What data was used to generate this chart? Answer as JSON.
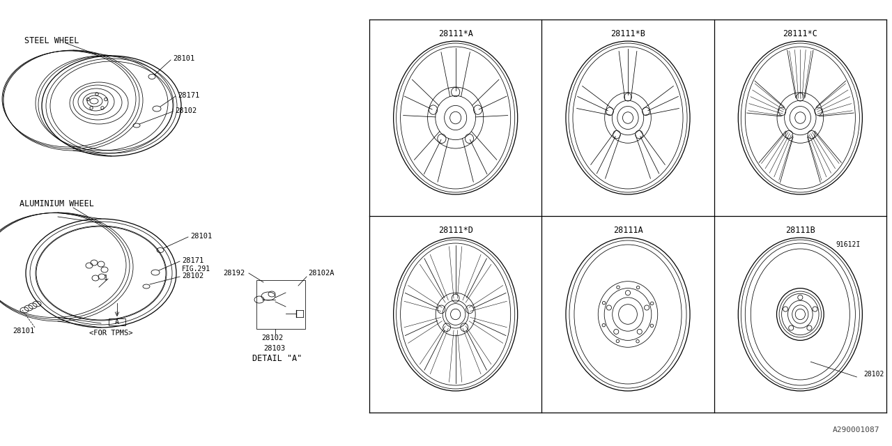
{
  "bg_color": "#ffffff",
  "line_color": "#000000",
  "part_number_ref": "A290001087",
  "steel_wheel_label": "STEEL WHEEL",
  "aluminium_wheel_label": "ALUMINIUM WHEEL",
  "detail_label": "DETAIL \"A\"",
  "for_tpms_label": "<FOR TPMS>",
  "grid_labels_top": [
    "28111*A",
    "28111*B",
    "28111*C"
  ],
  "grid_labels_bot": [
    "28111*D",
    "28111A",
    "28111B"
  ],
  "extra_label_91612I": "91612I",
  "extra_label_28102": "28102",
  "gx0": 530,
  "gy0": 48,
  "gx1": 1272,
  "gy1": 612,
  "lw_thin": 0.55,
  "lw_med": 0.9,
  "fontsize_label": 8.5,
  "fontsize_part": 7.5
}
